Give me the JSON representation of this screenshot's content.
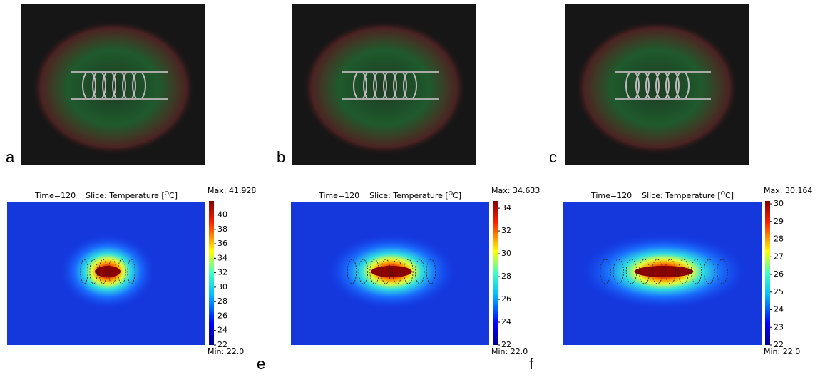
{
  "photos": [
    {
      "label": "a"
    },
    {
      "label": "b"
    },
    {
      "label": "c"
    }
  ],
  "simulations": [
    {
      "time_label": "Time=120",
      "slice_label": "Slice: Temperature [",
      "unit_sup": "O",
      "unit": "C]",
      "max_label": "Max: 41.928",
      "min_label": "Min: 22.0",
      "colorbar": {
        "lim": [
          22,
          41.928
        ],
        "ticks": [
          22,
          24,
          26,
          28,
          30,
          32,
          34,
          36,
          38,
          40
        ]
      }
    },
    {
      "time_label": "Time=120",
      "slice_label": "Slice: Temperature [",
      "unit_sup": "O",
      "unit": "C]",
      "max_label": "Max: 34.633",
      "min_label": "Min: 22.0",
      "colorbar": {
        "lim": [
          22,
          34.633
        ],
        "ticks": [
          22,
          24,
          26,
          28,
          30,
          32,
          34
        ]
      },
      "panel_label": "e"
    },
    {
      "time_label": "Time=120",
      "slice_label": "Slice: Temperature [",
      "unit_sup": "O",
      "unit": "C]",
      "max_label": "Max: 30.164",
      "min_label": "Min: 22.0",
      "colorbar": {
        "lim": [
          22,
          30.164
        ],
        "ticks": [
          22,
          23,
          24,
          25,
          26,
          27,
          28,
          29,
          30
        ]
      },
      "panel_label": "f"
    }
  ]
}
